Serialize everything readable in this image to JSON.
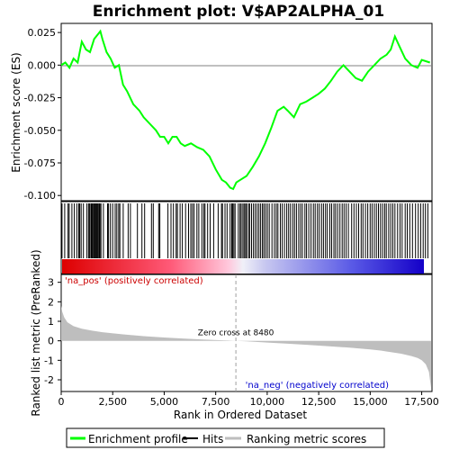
{
  "chart_data": {
    "type": "line",
    "title": "Enrichment plot: V$AP2ALPHA_01",
    "es_panel": {
      "ylabel": "Enrichment score (ES)",
      "ylim": [
        -0.104,
        0.032
      ],
      "yticks": [
        0.025,
        0.0,
        -0.025,
        -0.05,
        -0.075,
        -0.1
      ],
      "ytick_labels": [
        "0.025",
        "0.000",
        "-0.025",
        "-0.050",
        "-0.075",
        "-0.100"
      ],
      "curve_color": "#00ff00",
      "x": [
        0,
        200,
        400,
        600,
        800,
        1000,
        1200,
        1400,
        1600,
        1800,
        1900,
        2000,
        2200,
        2400,
        2600,
        2800,
        3000,
        3200,
        3500,
        3800,
        4000,
        4300,
        4600,
        4800,
        5000,
        5200,
        5400,
        5600,
        5800,
        6000,
        6300,
        6600,
        6900,
        7200,
        7500,
        7800,
        8000,
        8200,
        8350,
        8500,
        8700,
        9000,
        9300,
        9600,
        9900,
        10200,
        10500,
        10800,
        11000,
        11300,
        11600,
        11900,
        12200,
        12500,
        12800,
        13100,
        13400,
        13700,
        14000,
        14300,
        14600,
        14900,
        15200,
        15500,
        15800,
        16000,
        16200,
        16400,
        16700,
        17000,
        17300,
        17500,
        17700,
        17900
      ],
      "y": [
        0.0,
        0.002,
        -0.002,
        0.005,
        0.002,
        0.018,
        0.012,
        0.01,
        0.02,
        0.024,
        0.026,
        0.02,
        0.01,
        0.005,
        -0.002,
        0.0,
        -0.015,
        -0.02,
        -0.03,
        -0.035,
        -0.04,
        -0.045,
        -0.05,
        -0.055,
        -0.055,
        -0.06,
        -0.055,
        -0.055,
        -0.06,
        -0.062,
        -0.06,
        -0.063,
        -0.065,
        -0.07,
        -0.08,
        -0.088,
        -0.09,
        -0.094,
        -0.095,
        -0.09,
        -0.088,
        -0.085,
        -0.078,
        -0.07,
        -0.06,
        -0.048,
        -0.035,
        -0.032,
        -0.035,
        -0.04,
        -0.03,
        -0.028,
        -0.025,
        -0.022,
        -0.018,
        -0.012,
        -0.005,
        0.0,
        -0.005,
        -0.01,
        -0.012,
        -0.005,
        0.0,
        0.005,
        0.008,
        0.012,
        0.022,
        0.015,
        0.005,
        0.0,
        -0.002,
        0.004,
        0.003,
        0.002
      ]
    },
    "hits_panel": {
      "legend_label": "Hits",
      "positions": [
        40,
        170,
        330,
        390,
        520,
        640,
        760,
        850,
        900,
        970,
        1080,
        1250,
        1330,
        1380,
        1440,
        1480,
        1520,
        1570,
        1610,
        1650,
        1690,
        1720,
        1760,
        1800,
        1850,
        1880,
        1930,
        2050,
        2250,
        2300,
        2390,
        2500,
        2620,
        2700,
        2790,
        2850,
        3010,
        3250,
        3360,
        3700,
        3920,
        4050,
        4380,
        4470,
        4730,
        4790,
        5180,
        5330,
        5450,
        5580,
        5640,
        5770,
        5880,
        6040,
        6180,
        6290,
        6370,
        6450,
        6590,
        6680,
        6830,
        6920,
        6980,
        7110,
        7230,
        7400,
        7620,
        7780,
        7830,
        7950,
        8050,
        8200,
        8280,
        8320,
        8380,
        8440,
        8600,
        8680,
        8740,
        8820,
        8880,
        8950,
        9000,
        9090,
        9150,
        9240,
        9330,
        9420,
        9510,
        9600,
        9680,
        9770,
        9840,
        9920,
        10010,
        10100,
        10230,
        10350,
        10440,
        10520,
        10640,
        10730,
        10840,
        10950,
        11040,
        11130,
        11240,
        11330,
        11420,
        11530,
        11620,
        11710,
        11830,
        11910,
        12020,
        12130,
        12240,
        12330,
        12440,
        12530,
        12640,
        12730,
        12830,
        12920,
        13040,
        13130,
        13240,
        13320,
        13420,
        13530,
        13640,
        13730,
        13830,
        13940,
        14100,
        14210,
        14330,
        14440,
        14560,
        14650,
        14770,
        14880,
        15000,
        15090,
        15200,
        15300,
        15400,
        15500,
        15600,
        15700,
        15780,
        15900,
        16000,
        16100,
        16200,
        16330,
        16450,
        16550,
        16700,
        16800,
        16920,
        17050,
        17200,
        17330,
        17450,
        17570,
        17680,
        17800
      ]
    },
    "rank_panel": {
      "ylabel": "Ranked list metric (PreRanked)",
      "xlabel": "Rank in Ordered Dataset",
      "xlim": [
        0,
        18000
      ],
      "xticks": [
        0,
        2500,
        5000,
        7500,
        10000,
        12500,
        15000,
        17500
      ],
      "xtick_labels": [
        "0",
        "2,500",
        "5,000",
        "7,500",
        "10,000",
        "12,500",
        "15,000",
        "17,500"
      ],
      "ylim": [
        -2.6,
        3.4
      ],
      "yticks": [
        3,
        2,
        1,
        0,
        -1,
        -2
      ],
      "ytick_labels": [
        "3",
        "2",
        "1",
        "0",
        "-1",
        "-2"
      ],
      "fill_color": "#bebebe",
      "x": [
        0,
        50,
        150,
        300,
        600,
        1000,
        1500,
        2000,
        3000,
        4000,
        5000,
        6000,
        7000,
        8000,
        8480,
        9000,
        10000,
        11000,
        12000,
        13000,
        14000,
        15000,
        15500,
        16000,
        16500,
        17000,
        17300,
        17500,
        17700,
        17850,
        17950
      ],
      "y": [
        1.8,
        1.5,
        1.2,
        0.95,
        0.75,
        0.62,
        0.52,
        0.44,
        0.33,
        0.24,
        0.17,
        0.11,
        0.06,
        0.02,
        0.0,
        -0.03,
        -0.09,
        -0.15,
        -0.21,
        -0.28,
        -0.35,
        -0.44,
        -0.5,
        -0.58,
        -0.66,
        -0.78,
        -0.88,
        -1.0,
        -1.2,
        -1.6,
        -2.4
      ],
      "zero_cross_label": "Zero cross at 8480",
      "zero_cross": 8480,
      "pos_label": "'na_pos' (positively correlated)",
      "neg_label": "'na_neg' (negatively correlated)",
      "pos_label_color": "#cc0000",
      "neg_label_color": "#0000cc"
    },
    "legend": {
      "items": [
        "Enrichment profile",
        "Hits",
        "Ranking metric scores"
      ],
      "colors": [
        "#00ff00",
        "#000000",
        "#bebebe"
      ]
    }
  }
}
